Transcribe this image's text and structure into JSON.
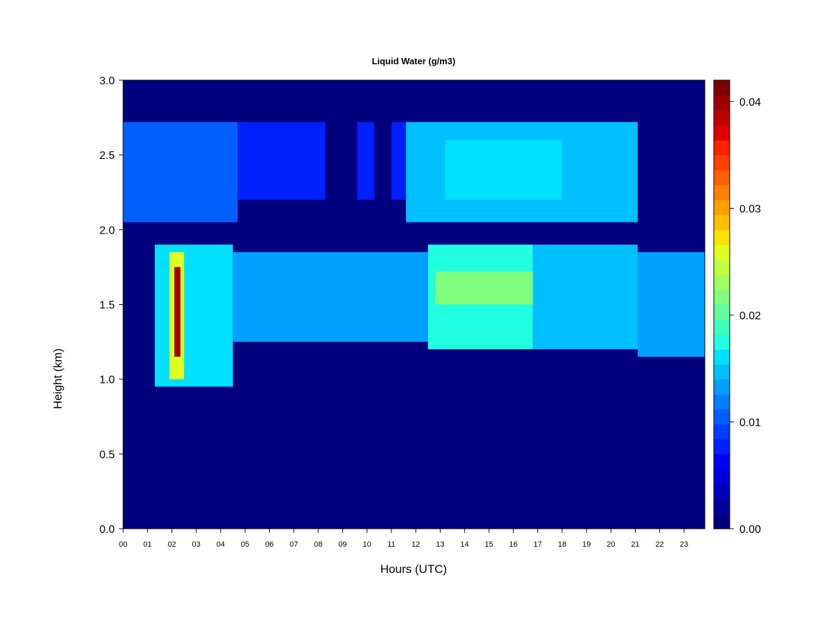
{
  "chart_data": {
    "type": "heatmap",
    "title": "Liquid Water (g/m3)",
    "xlabel": "Hours (UTC)",
    "ylabel": "Height (km)",
    "x_ticks": [
      "00",
      "01",
      "02",
      "03",
      "04",
      "05",
      "06",
      "07",
      "08",
      "09",
      "10",
      "11",
      "12",
      "13",
      "14",
      "15",
      "16",
      "17",
      "18",
      "19",
      "20",
      "21",
      "22",
      "23"
    ],
    "y_ticks": [
      "0.0",
      "0.5",
      "1.0",
      "1.5",
      "2.0",
      "2.5",
      "3.0"
    ],
    "xlim": [
      0,
      23.85
    ],
    "ylim": [
      0,
      3.0
    ],
    "colorbar": {
      "ticks": [
        "0.00",
        "0.01",
        "0.02",
        "0.03",
        "0.04"
      ],
      "tick_values": [
        0,
        0.01,
        0.02,
        0.03,
        0.04
      ],
      "range": [
        0,
        0.042
      ],
      "colors": [
        "#00007F",
        "#00009F",
        "#0000BF",
        "#0000DF",
        "#0000FF",
        "#0020FF",
        "#0040FF",
        "#0060FF",
        "#0080FF",
        "#00A0FF",
        "#00C0FF",
        "#00E0FF",
        "#20FFDF",
        "#40FFBF",
        "#60FF9F",
        "#80FF7F",
        "#9FFF60",
        "#BFFF40",
        "#DFFF20",
        "#FFE000",
        "#FFC000",
        "#FFA000",
        "#FF8000",
        "#FF6000",
        "#FF4000",
        "#FF2000",
        "#DF0000",
        "#BF0000",
        "#9F0000",
        "#7F0000"
      ]
    },
    "background_value": 0.0,
    "cloud_layers": [
      {
        "x_start": 1.3,
        "x_end": 4.5,
        "y_bottom": 0.95,
        "y_top": 1.9,
        "value": 0.016
      },
      {
        "x_start": 4.5,
        "x_end": 12.5,
        "y_bottom": 1.25,
        "y_top": 1.85,
        "value": 0.013
      },
      {
        "x_start": 12.5,
        "x_end": 16.8,
        "y_bottom": 1.2,
        "y_top": 1.9,
        "value": 0.018
      },
      {
        "x_start": 16.8,
        "x_end": 21.1,
        "y_bottom": 1.2,
        "y_top": 1.9,
        "value": 0.015
      },
      {
        "x_start": 21.1,
        "x_end": 23.85,
        "y_bottom": 1.15,
        "y_top": 1.85,
        "value": 0.013
      },
      {
        "x_start": 0.0,
        "x_end": 4.7,
        "y_bottom": 2.05,
        "y_top": 2.72,
        "value": 0.01
      },
      {
        "x_start": 4.7,
        "x_end": 8.3,
        "y_bottom": 2.2,
        "y_top": 2.72,
        "value": 0.007
      },
      {
        "x_start": 9.6,
        "x_end": 10.3,
        "y_bottom": 2.2,
        "y_top": 2.72,
        "value": 0.007
      },
      {
        "x_start": 11.0,
        "x_end": 11.6,
        "y_bottom": 2.2,
        "y_top": 2.72,
        "value": 0.007
      },
      {
        "x_start": 11.6,
        "x_end": 21.1,
        "y_bottom": 2.05,
        "y_top": 2.72,
        "value": 0.014
      },
      {
        "x_start": 13.2,
        "x_end": 18.0,
        "y_bottom": 2.2,
        "y_top": 2.6,
        "value": 0.016
      },
      {
        "x_start": 12.8,
        "x_end": 16.8,
        "y_bottom": 1.5,
        "y_top": 1.72,
        "value": 0.022
      },
      {
        "x_start": 1.9,
        "x_end": 2.5,
        "y_bottom": 1.0,
        "y_top": 1.85,
        "value": 0.026
      },
      {
        "x_start": 2.1,
        "x_end": 2.35,
        "y_bottom": 1.15,
        "y_top": 1.75,
        "value": 0.04
      }
    ]
  }
}
